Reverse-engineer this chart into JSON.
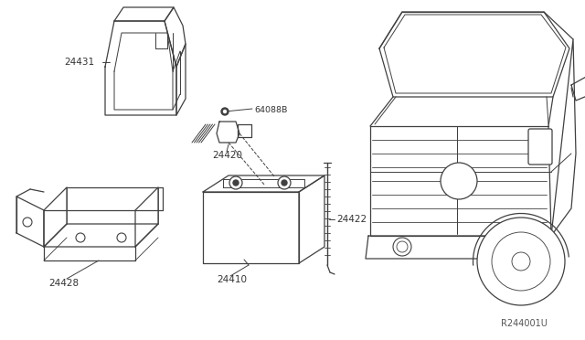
{
  "bg_color": "#ffffff",
  "line_color": "#404040",
  "fig_width": 6.4,
  "fig_height": 3.72,
  "dpi": 100,
  "reference_code": "R244001U",
  "label_24431": "24431",
  "label_24420": "24420",
  "label_64088B": "64088B",
  "label_24410": "24410",
  "label_24422": "24422",
  "label_24428": "24428"
}
